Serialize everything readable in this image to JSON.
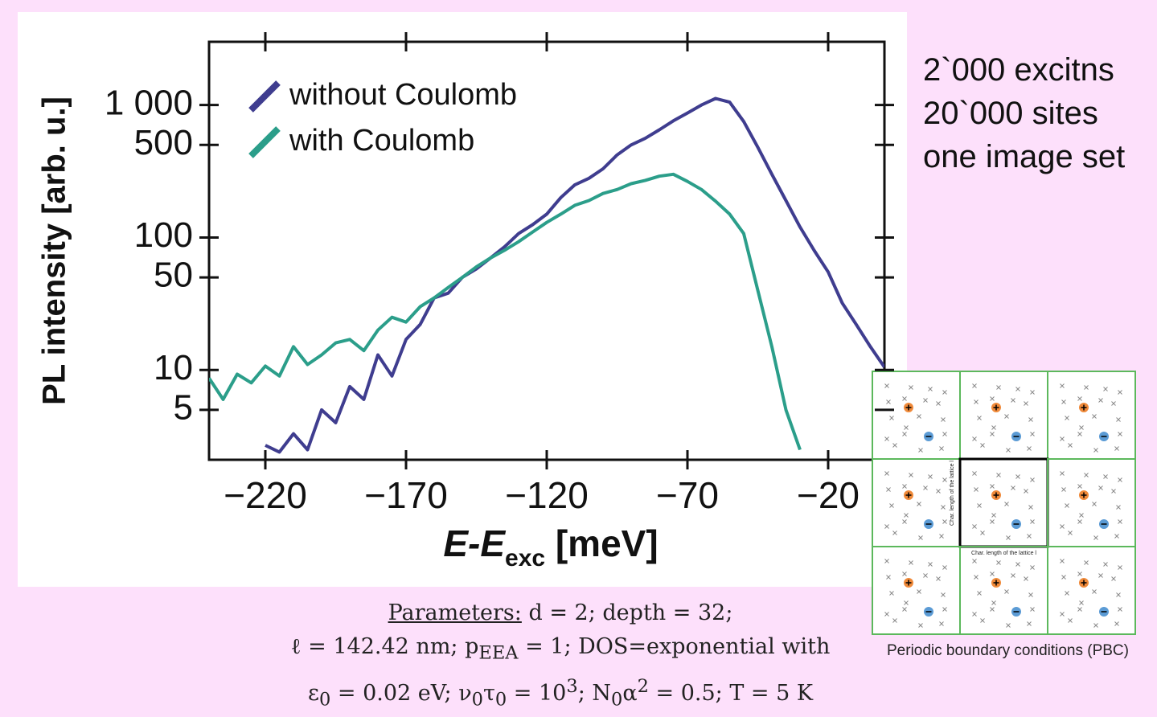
{
  "chart_data": {
    "type": "line",
    "ylabel": "PL intensity [arb. u.]",
    "xlabel": "E-E",
    "xlabel_sub": "exc",
    "xlabel_unit": " [meV]",
    "x": [
      -240,
      -235,
      -230,
      -225,
      -220,
      -215,
      -210,
      -205,
      -200,
      -195,
      -190,
      -185,
      -180,
      -175,
      -170,
      -165,
      -160,
      -155,
      -150,
      -145,
      -140,
      -135,
      -130,
      -125,
      -120,
      -115,
      -110,
      -105,
      -100,
      -95,
      -90,
      -85,
      -80,
      -75,
      -70,
      -65,
      -60,
      -55,
      -50,
      -45,
      -40,
      -35,
      -30,
      -25,
      -20,
      -15,
      -10,
      -5,
      0
    ],
    "series": [
      {
        "name": "without Coulomb",
        "color": "#3f3d8f",
        "values": [
          null,
          null,
          null,
          null,
          2.7,
          2.4,
          3.3,
          2.5,
          5,
          4,
          7.5,
          6,
          13,
          9,
          17,
          22,
          35,
          38,
          50,
          58,
          70,
          85,
          107,
          125,
          150,
          200,
          250,
          280,
          330,
          420,
          500,
          560,
          650,
          760,
          870,
          1000,
          1120,
          1050,
          750,
          480,
          300,
          190,
          120,
          80,
          55,
          32,
          22,
          15,
          10.5
        ]
      },
      {
        "name": "with Coulomb",
        "color": "#2b9e8a",
        "values": [
          8.7,
          6,
          9.3,
          8,
          10.7,
          9,
          15,
          11,
          13,
          16,
          17,
          14,
          20,
          25,
          23,
          30,
          35,
          42,
          50,
          60,
          70,
          80,
          93,
          110,
          130,
          150,
          175,
          190,
          215,
          230,
          255,
          270,
          290,
          300,
          265,
          230,
          188,
          150,
          107,
          40,
          15,
          5,
          2.5,
          null,
          null,
          null,
          null,
          null,
          null
        ]
      }
    ],
    "xlim": [
      -240,
      0
    ],
    "xticks": [
      {
        "value": -220,
        "label": "−220"
      },
      {
        "value": -170,
        "label": "−170"
      },
      {
        "value": -120,
        "label": "−120"
      },
      {
        "value": -70,
        "label": "−70"
      },
      {
        "value": -20,
        "label": "−20"
      }
    ],
    "ylim": [
      2.1,
      3000
    ],
    "yticks": [
      {
        "value": 1000,
        "label": "1 000"
      },
      500,
      100,
      50,
      10,
      5
    ],
    "log_y": true,
    "legend": "upper left"
  },
  "side_notes": [
    "2`000 excitns",
    "20`000 sites",
    "one image set"
  ],
  "pbc": {
    "lattice_label": "Char. length of the lattice l",
    "caption": "Periodic boundary conditions (PBC)"
  },
  "parameters": {
    "heading": "Parameters:",
    "lines": [
      [
        " d = 2; depth = 32;"
      ],
      [
        "ℓ = 142.42 nm; p",
        {
          "sub": "EEA"
        },
        " = 1; DOS=exponential with"
      ],
      [
        "ε",
        {
          "sub": "0"
        },
        " = 0.02 eV; ν",
        {
          "sub": "0"
        },
        "τ",
        {
          "sub": "0"
        },
        " = 10",
        {
          "sup": "3"
        },
        "; N",
        {
          "sub": "0"
        },
        "α",
        {
          "sup": "2"
        },
        " = 0.5; T = 5 K"
      ]
    ]
  }
}
